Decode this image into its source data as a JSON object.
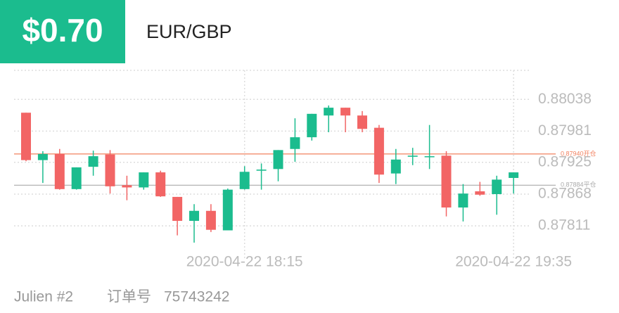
{
  "header": {
    "amount": "$0.70",
    "pair": "EUR/GBP"
  },
  "chart_data": {
    "type": "candlestick",
    "categories": [
      null,
      null,
      null,
      null,
      null,
      null,
      null,
      null,
      null,
      null,
      null,
      null,
      null,
      "2020-04-22 18:15",
      null,
      null,
      null,
      null,
      null,
      null,
      null,
      null,
      null,
      null,
      null,
      null,
      null,
      null,
      null,
      "2020-04-22 19:35"
    ],
    "open": [
      0.88014,
      0.87929,
      0.8794,
      0.87877,
      0.87917,
      0.87939,
      0.87884,
      0.8788,
      0.87907,
      0.87863,
      0.8782,
      0.87838,
      0.87803,
      0.87877,
      0.8791,
      0.87913,
      0.87949,
      0.8797,
      0.88009,
      0.88023,
      0.88009,
      0.87987,
      0.87905,
      0.87935,
      0.87936,
      0.87937,
      0.87844,
      0.87873,
      0.87868,
      0.87897
    ],
    "high": [
      0.88014,
      0.87945,
      0.87949,
      0.87916,
      0.87946,
      0.87947,
      0.87901,
      0.87907,
      0.8791,
      0.87863,
      0.8785,
      0.8785,
      0.87878,
      0.87918,
      0.87923,
      0.87947,
      0.88004,
      0.88012,
      0.88027,
      0.88023,
      0.88017,
      0.87992,
      0.87949,
      0.87951,
      0.87992,
      0.87945,
      0.87886,
      0.8789,
      0.87901,
      0.87907
    ],
    "low": [
      0.87927,
      0.87888,
      0.87876,
      0.87876,
      0.87901,
      0.87869,
      0.87857,
      0.87876,
      0.87863,
      0.87794,
      0.87781,
      0.878,
      0.87803,
      0.87876,
      0.87876,
      0.87891,
      0.87926,
      0.87964,
      0.87979,
      0.87979,
      0.87979,
      0.87888,
      0.87886,
      0.8792,
      0.87913,
      0.87828,
      0.87819,
      0.87865,
      0.87831,
      0.87869
    ],
    "close": [
      0.87929,
      0.8794,
      0.87877,
      0.87916,
      0.87936,
      0.87882,
      0.8788,
      0.87907,
      0.87864,
      0.8782,
      0.87838,
      0.87804,
      0.87876,
      0.87908,
      0.87912,
      0.87947,
      0.8797,
      0.88012,
      0.88023,
      0.88009,
      0.87985,
      0.87903,
      0.8793,
      0.87937,
      0.87936,
      0.87844,
      0.87869,
      0.87867,
      0.87894,
      0.87907
    ],
    "up_color": "#1bbc8e",
    "down_color": "#f26565",
    "ylim": [
      0.87762,
      0.8809
    ],
    "yticks": [
      0.88038,
      0.87981,
      0.87925,
      0.87868,
      0.87811
    ],
    "grid": true,
    "lines": [
      {
        "value": 0.8794,
        "label": "0.87940开仓",
        "color": "#f2805e"
      },
      {
        "value": 0.87884,
        "label": "0.87884平仓",
        "color": "#aaaaaa"
      }
    ]
  },
  "footer": {
    "user": "Julien #2",
    "order_label": "订单号",
    "order_no": "75743242"
  }
}
